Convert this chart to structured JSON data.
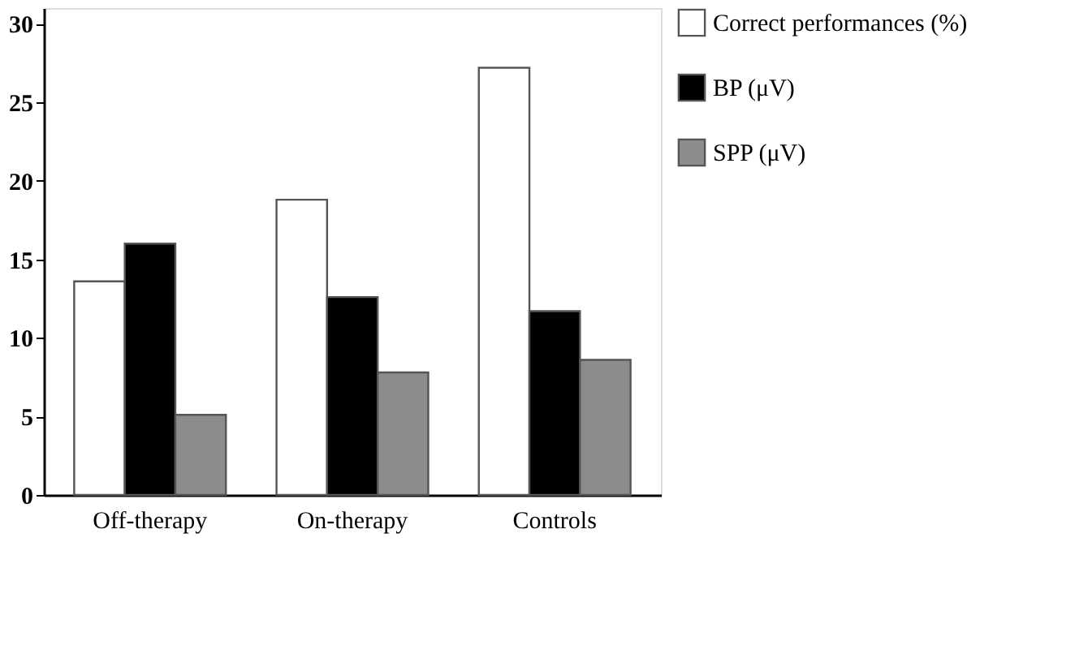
{
  "chart_data": {
    "type": "bar",
    "categories": [
      "Off-therapy",
      "On-therapy",
      "Controls"
    ],
    "series": [
      {
        "name": "Correct performances (%)",
        "color": "#ffffff",
        "values": [
          13.6,
          18.8,
          27.2
        ]
      },
      {
        "name": "BP (μV)",
        "color": "#000000",
        "values": [
          16.0,
          12.6,
          11.7
        ]
      },
      {
        "name": "SPP (μV)",
        "color": "#8c8c8c",
        "values": [
          5.1,
          7.8,
          8.6
        ]
      }
    ],
    "ylim": [
      0,
      31
    ],
    "yticks": [
      0,
      5,
      10,
      15,
      20,
      25,
      30
    ],
    "grid": false,
    "legend": "right"
  }
}
